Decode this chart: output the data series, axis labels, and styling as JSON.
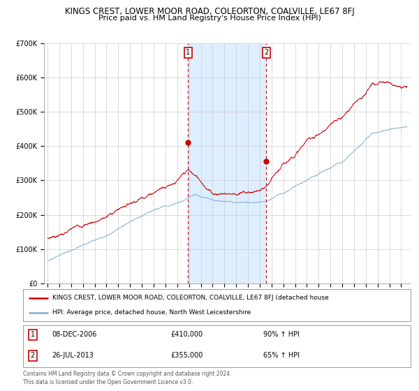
{
  "title": "KINGS CREST, LOWER MOOR ROAD, COLEORTON, COALVILLE, LE67 8FJ",
  "subtitle": "Price paid vs. HM Land Registry's House Price Index (HPI)",
  "red_label": "KINGS CREST, LOWER MOOR ROAD, COLEORTON, COALVILLE, LE67 8FJ (detached house",
  "blue_label": "HPI: Average price, detached house, North West Leicestershire",
  "annotation1_date": "08-DEC-2006",
  "annotation1_price": "£410,000",
  "annotation1_pct": "90% ↑ HPI",
  "annotation2_date": "26-JUL-2013",
  "annotation2_price": "£355,000",
  "annotation2_pct": "65% ↑ HPI",
  "footnote": "Contains HM Land Registry data © Crown copyright and database right 2024.\nThis data is licensed under the Open Government Licence v3.0.",
  "ylim": [
    0,
    700000
  ],
  "yticks": [
    0,
    100000,
    200000,
    300000,
    400000,
    500000,
    600000,
    700000
  ],
  "ytick_labels": [
    "£0",
    "£100K",
    "£200K",
    "£300K",
    "£400K",
    "£500K",
    "£600K",
    "£700K"
  ],
  "marker1_year": 2006.92,
  "marker1_value": 410000,
  "marker2_year": 2013.56,
  "marker2_value": 355000,
  "vline1_year": 2006.92,
  "vline2_year": 2013.56,
  "shade_start": 2006.92,
  "shade_end": 2013.56,
  "red_color": "#cc0000",
  "blue_color": "#7bafd4",
  "shade_color": "#ddeeff",
  "vline_color": "#cc0000",
  "grid_color": "#cccccc",
  "background_color": "#ffffff",
  "title_fontsize": 8.5,
  "subtitle_fontsize": 8.0,
  "xlim_start": 1994.7,
  "xlim_end": 2025.8
}
